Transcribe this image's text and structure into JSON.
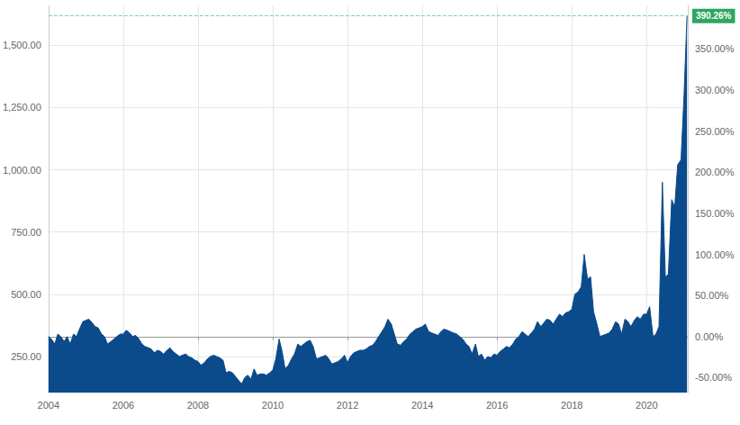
{
  "chart_data": {
    "type": "area",
    "color": "#0b4a8b",
    "grid": true,
    "x": [
      2004.0,
      2004.08,
      2004.17,
      2004.25,
      2004.33,
      2004.42,
      2004.5,
      2004.58,
      2004.67,
      2004.75,
      2004.83,
      2004.92,
      2005.0,
      2005.08,
      2005.17,
      2005.25,
      2005.33,
      2005.42,
      2005.5,
      2005.58,
      2005.67,
      2005.75,
      2005.83,
      2005.92,
      2006.0,
      2006.08,
      2006.17,
      2006.25,
      2006.33,
      2006.42,
      2006.5,
      2006.58,
      2006.67,
      2006.75,
      2006.83,
      2006.92,
      2007.0,
      2007.08,
      2007.17,
      2007.25,
      2007.33,
      2007.42,
      2007.5,
      2007.58,
      2007.67,
      2007.75,
      2007.83,
      2007.92,
      2008.0,
      2008.08,
      2008.17,
      2008.25,
      2008.33,
      2008.42,
      2008.5,
      2008.58,
      2008.67,
      2008.75,
      2008.83,
      2008.92,
      2009.0,
      2009.08,
      2009.17,
      2009.25,
      2009.33,
      2009.42,
      2009.5,
      2009.58,
      2009.67,
      2009.75,
      2009.83,
      2009.92,
      2010.0,
      2010.08,
      2010.17,
      2010.25,
      2010.33,
      2010.42,
      2010.5,
      2010.58,
      2010.67,
      2010.75,
      2010.83,
      2010.92,
      2011.0,
      2011.08,
      2011.17,
      2011.25,
      2011.33,
      2011.42,
      2011.5,
      2011.58,
      2011.67,
      2011.75,
      2011.83,
      2011.92,
      2012.0,
      2012.08,
      2012.17,
      2012.25,
      2012.33,
      2012.42,
      2012.5,
      2012.58,
      2012.67,
      2012.75,
      2012.83,
      2012.92,
      2013.0,
      2013.08,
      2013.17,
      2013.25,
      2013.33,
      2013.42,
      2013.5,
      2013.58,
      2013.67,
      2013.75,
      2013.83,
      2013.92,
      2014.0,
      2014.08,
      2014.17,
      2014.25,
      2014.33,
      2014.42,
      2014.5,
      2014.58,
      2014.67,
      2014.75,
      2014.83,
      2014.92,
      2015.0,
      2015.08,
      2015.17,
      2015.25,
      2015.33,
      2015.42,
      2015.5,
      2015.58,
      2015.67,
      2015.75,
      2015.83,
      2015.92,
      2016.0,
      2016.08,
      2016.17,
      2016.25,
      2016.33,
      2016.42,
      2016.5,
      2016.58,
      2016.67,
      2016.75,
      2016.83,
      2016.92,
      2017.0,
      2017.08,
      2017.17,
      2017.25,
      2017.33,
      2017.42,
      2017.5,
      2017.58,
      2017.67,
      2017.75,
      2017.83,
      2017.92,
      2018.0,
      2018.08,
      2018.17,
      2018.25,
      2018.33,
      2018.42,
      2018.5,
      2018.58,
      2018.67,
      2018.75,
      2018.83,
      2018.92,
      2019.0,
      2019.08,
      2019.17,
      2019.25,
      2019.33,
      2019.42,
      2019.5,
      2019.58,
      2019.67,
      2019.75,
      2019.83,
      2019.92,
      2020.0,
      2020.08,
      2020.17,
      2020.25,
      2020.33,
      2020.42,
      2020.5,
      2020.58,
      2020.67,
      2020.75,
      2020.83,
      2020.92,
      2021.0,
      2021.08
    ],
    "values": [
      330,
      320,
      300,
      340,
      330,
      310,
      330,
      300,
      340,
      330,
      360,
      390,
      395,
      400,
      385,
      370,
      365,
      340,
      330,
      300,
      310,
      320,
      330,
      340,
      340,
      355,
      345,
      330,
      335,
      320,
      300,
      290,
      285,
      280,
      265,
      275,
      270,
      260,
      275,
      285,
      270,
      260,
      250,
      255,
      260,
      250,
      245,
      235,
      230,
      215,
      225,
      240,
      250,
      255,
      250,
      245,
      235,
      185,
      190,
      185,
      170,
      155,
      140,
      165,
      175,
      160,
      200,
      175,
      180,
      180,
      175,
      185,
      195,
      240,
      320,
      270,
      200,
      215,
      240,
      260,
      300,
      290,
      300,
      310,
      315,
      290,
      240,
      245,
      250,
      255,
      240,
      220,
      225,
      230,
      240,
      255,
      225,
      250,
      265,
      270,
      275,
      275,
      280,
      290,
      295,
      310,
      330,
      350,
      370,
      400,
      380,
      340,
      300,
      295,
      310,
      320,
      340,
      350,
      360,
      365,
      370,
      380,
      350,
      345,
      340,
      335,
      350,
      360,
      355,
      350,
      345,
      340,
      330,
      320,
      300,
      290,
      260,
      300,
      250,
      260,
      235,
      250,
      245,
      260,
      255,
      270,
      280,
      290,
      285,
      300,
      320,
      330,
      350,
      340,
      330,
      345,
      360,
      390,
      370,
      385,
      400,
      395,
      380,
      400,
      420,
      410,
      425,
      430,
      440,
      500,
      510,
      530,
      660,
      560,
      570,
      430,
      380,
      330,
      335,
      340,
      345,
      360,
      390,
      380,
      340,
      400,
      390,
      370,
      395,
      410,
      400,
      420,
      420,
      450,
      330,
      340,
      370,
      950,
      570,
      580,
      880,
      850,
      1020,
      1040,
      1300,
      1618
    ],
    "xlim": [
      2004,
      2021.1
    ],
    "xticks": [
      2004,
      2006,
      2008,
      2010,
      2012,
      2014,
      2016,
      2018,
      2020
    ],
    "ylim": [
      105,
      1660
    ],
    "yticks": [
      {
        "value": 250,
        "label": "250.00"
      },
      {
        "value": 500,
        "label": "500.00"
      },
      {
        "value": 750,
        "label": "750.00"
      },
      {
        "value": 1000,
        "label": "1,000.00"
      },
      {
        "value": 1250,
        "label": "1,250.00"
      },
      {
        "value": 1500,
        "label": "1,500.00"
      }
    ],
    "y2lim": [
      -68.2,
      403
    ],
    "y2ticks": [
      {
        "value": -50,
        "label": "-50.00%"
      },
      {
        "value": 0,
        "label": "0.00%"
      },
      {
        "value": 50,
        "label": "50.00%"
      },
      {
        "value": 100,
        "label": "100.00%"
      },
      {
        "value": 150,
        "label": "150.00%"
      },
      {
        "value": 200,
        "label": "200.00%"
      },
      {
        "value": 250,
        "label": "250.00%"
      },
      {
        "value": 300,
        "label": "300.00%"
      },
      {
        "value": 350,
        "label": "350.00%"
      }
    ],
    "annotations": [
      {
        "text": "390.26%",
        "value": 390.26,
        "axis": "y2"
      }
    ]
  }
}
